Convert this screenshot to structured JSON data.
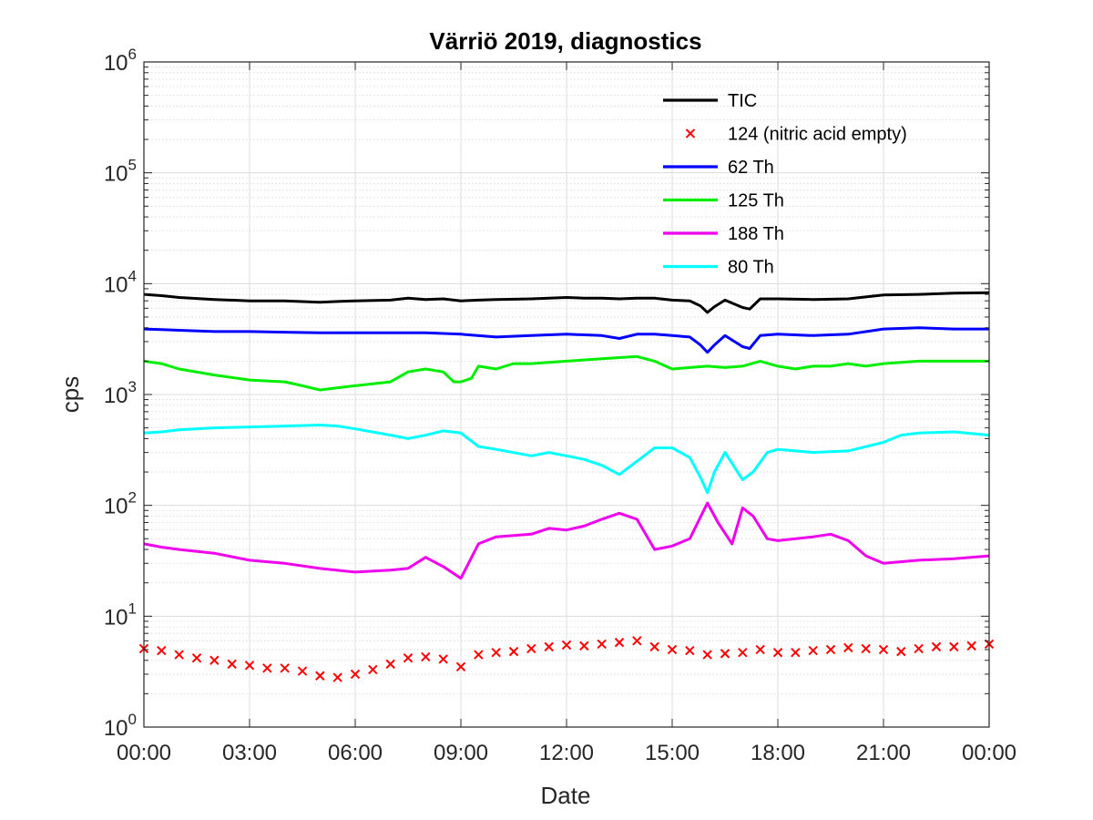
{
  "chart_data": {
    "type": "line",
    "title": "Värriö 2019, diagnostics",
    "xlabel": "Date",
    "ylabel": "cps",
    "y_scale": "log",
    "ylim": [
      1,
      1000000
    ],
    "xlim_hours": [
      0,
      24
    ],
    "grid": true,
    "minor_grid": true,
    "legend_position": "top-right",
    "x_ticks": [
      {
        "hour": 0,
        "label": "00:00"
      },
      {
        "hour": 3,
        "label": "03:00"
      },
      {
        "hour": 6,
        "label": "06:00"
      },
      {
        "hour": 9,
        "label": "09:00"
      },
      {
        "hour": 12,
        "label": "12:00"
      },
      {
        "hour": 15,
        "label": "15:00"
      },
      {
        "hour": 18,
        "label": "18:00"
      },
      {
        "hour": 21,
        "label": "21:00"
      },
      {
        "hour": 24,
        "label": "00:00"
      }
    ],
    "y_ticks": [
      {
        "value": 1,
        "base": "10",
        "exp": "0"
      },
      {
        "value": 10,
        "base": "10",
        "exp": "1"
      },
      {
        "value": 100,
        "base": "10",
        "exp": "2"
      },
      {
        "value": 1000,
        "base": "10",
        "exp": "3"
      },
      {
        "value": 10000,
        "base": "10",
        "exp": "4"
      },
      {
        "value": 100000,
        "base": "10",
        "exp": "5"
      },
      {
        "value": 1000000,
        "base": "10",
        "exp": "6"
      }
    ],
    "series": [
      {
        "name": "TIC",
        "color": "#000000",
        "style": "line",
        "x": [
          0,
          0.5,
          1,
          2,
          3,
          4,
          5,
          5.5,
          6,
          7,
          7.5,
          8,
          8.5,
          9,
          9.5,
          10,
          11,
          12,
          12.5,
          13,
          13.5,
          14,
          14.5,
          15,
          15.5,
          15.8,
          16.0,
          16.2,
          16.5,
          17.0,
          17.2,
          17.5,
          18,
          19,
          20,
          21,
          22,
          23,
          24
        ],
        "y": [
          8000,
          7800,
          7500,
          7200,
          7000,
          7000,
          6800,
          6900,
          7000,
          7100,
          7400,
          7200,
          7300,
          7000,
          7100,
          7200,
          7300,
          7500,
          7400,
          7400,
          7300,
          7400,
          7400,
          7100,
          7000,
          6300,
          5500,
          6200,
          7100,
          6100,
          5900,
          7300,
          7300,
          7200,
          7300,
          7900,
          8000,
          8200,
          8300
        ]
      },
      {
        "name": "124 (nitric acid empty)",
        "color": "#ff0000",
        "style": "marker-x",
        "x": [
          0,
          0.5,
          1,
          1.5,
          2,
          2.5,
          3,
          3.5,
          4,
          4.5,
          5,
          5.5,
          6,
          6.5,
          7,
          7.5,
          8,
          8.5,
          9,
          9.5,
          10,
          10.5,
          11,
          11.5,
          12,
          12.5,
          13,
          13.5,
          14,
          14.5,
          15,
          15.5,
          16,
          16.5,
          17,
          17.5,
          18,
          18.5,
          19,
          19.5,
          20,
          20.5,
          21,
          21.5,
          22,
          22.5,
          23,
          23.5,
          24
        ],
        "y": [
          5.1,
          4.9,
          4.5,
          4.2,
          4.0,
          3.7,
          3.6,
          3.4,
          3.4,
          3.2,
          2.9,
          2.8,
          3.0,
          3.3,
          3.7,
          4.2,
          4.3,
          4.1,
          3.5,
          4.5,
          4.7,
          4.8,
          5.1,
          5.3,
          5.5,
          5.4,
          5.6,
          5.8,
          6.0,
          5.3,
          5.0,
          4.9,
          4.5,
          4.6,
          4.7,
          5.0,
          4.7,
          4.7,
          4.9,
          5.0,
          5.2,
          5.1,
          5.0,
          4.8,
          5.1,
          5.3,
          5.3,
          5.4,
          5.6
        ]
      },
      {
        "name": "62 Th",
        "color": "#0000ff",
        "style": "line",
        "x": [
          0,
          0.5,
          1,
          2,
          3,
          4,
          5,
          6,
          7,
          8,
          9,
          10,
          11,
          12,
          13,
          13.5,
          14,
          14.5,
          15,
          15.5,
          15.8,
          16.0,
          16.2,
          16.5,
          17.0,
          17.2,
          17.5,
          18,
          19,
          20,
          21,
          22,
          23,
          24
        ],
        "y": [
          3900,
          3850,
          3800,
          3700,
          3700,
          3650,
          3600,
          3600,
          3600,
          3600,
          3500,
          3300,
          3400,
          3500,
          3400,
          3200,
          3500,
          3500,
          3400,
          3300,
          2800,
          2400,
          2800,
          3400,
          2700,
          2600,
          3400,
          3500,
          3400,
          3500,
          3900,
          4000,
          3900,
          3900
        ]
      },
      {
        "name": "125 Th",
        "color": "#00ee00",
        "style": "line",
        "x": [
          0,
          0.5,
          1,
          2,
          3,
          4,
          4.5,
          5,
          5.5,
          6,
          7,
          7.5,
          8,
          8.5,
          8.8,
          9,
          9.3,
          9.5,
          10,
          10.5,
          11,
          12,
          13,
          14,
          14.5,
          15,
          15.5,
          16,
          16.5,
          17,
          17.5,
          18,
          18.5,
          19,
          19.5,
          20,
          20.5,
          21,
          22,
          23,
          24
        ],
        "y": [
          2000,
          1900,
          1700,
          1500,
          1350,
          1300,
          1200,
          1100,
          1150,
          1200,
          1300,
          1600,
          1700,
          1600,
          1300,
          1300,
          1400,
          1800,
          1700,
          1900,
          1900,
          2000,
          2100,
          2200,
          2000,
          1700,
          1750,
          1800,
          1750,
          1800,
          2000,
          1800,
          1700,
          1800,
          1800,
          1900,
          1800,
          1900,
          2000,
          2000,
          2000
        ]
      },
      {
        "name": "188 Th",
        "color": "#ee00ee",
        "style": "line",
        "x": [
          0,
          0.5,
          1,
          2,
          3,
          4,
          5,
          6,
          7,
          7.5,
          8,
          8.5,
          9,
          9.5,
          10,
          11,
          11.5,
          12,
          12.5,
          13,
          13.5,
          14,
          14.5,
          15,
          15.5,
          16,
          16.3,
          16.7,
          17.0,
          17.3,
          17.7,
          18,
          19,
          19.5,
          20,
          20.5,
          21,
          22,
          23,
          24
        ],
        "y": [
          45,
          42,
          40,
          37,
          32,
          30,
          27,
          25,
          26,
          27,
          34,
          28,
          22,
          45,
          52,
          55,
          62,
          60,
          65,
          75,
          85,
          75,
          40,
          43,
          50,
          105,
          70,
          45,
          95,
          80,
          50,
          48,
          52,
          55,
          48,
          35,
          30,
          32,
          33,
          35
        ]
      },
      {
        "name": "80 Th",
        "color": "#00ffff",
        "style": "line",
        "x": [
          0,
          0.5,
          1,
          2,
          3,
          4,
          5,
          5.5,
          6,
          7,
          7.5,
          8,
          8.5,
          9,
          9.5,
          10,
          11,
          11.5,
          12,
          12.5,
          13,
          13.5,
          14,
          14.5,
          15,
          15.5,
          15.8,
          16,
          16.2,
          16.5,
          17,
          17.3,
          17.7,
          18,
          18.5,
          19,
          20,
          21,
          21.5,
          22,
          23,
          24
        ],
        "y": [
          450,
          460,
          480,
          500,
          510,
          520,
          530,
          520,
          490,
          430,
          400,
          430,
          470,
          450,
          340,
          320,
          280,
          300,
          280,
          260,
          230,
          190,
          250,
          330,
          330,
          270,
          180,
          130,
          200,
          300,
          170,
          200,
          300,
          320,
          310,
          300,
          310,
          370,
          430,
          450,
          460,
          430
        ]
      }
    ]
  }
}
